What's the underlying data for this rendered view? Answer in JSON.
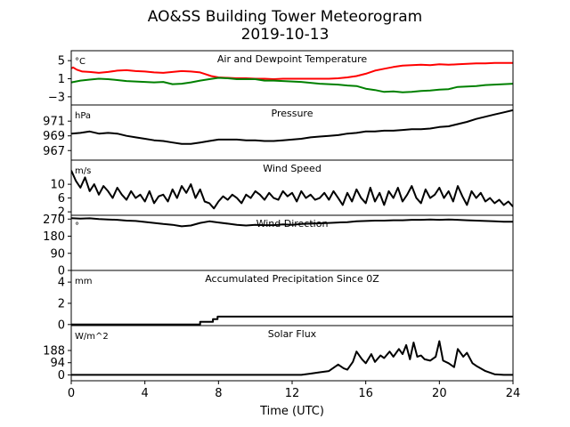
{
  "figure": {
    "title_line1": "AO&SS Building Tower Meteorogram",
    "title_line2": "2019-10-13",
    "xlabel": "Time (UTC)",
    "xticks": [
      0,
      4,
      8,
      12,
      16,
      20,
      24
    ],
    "xlim": [
      0,
      24
    ]
  },
  "chart_data": [
    {
      "type": "line",
      "title": "Air and Dewpoint Temperature",
      "units": "°C",
      "ylim": [
        -4.8,
        7.2
      ],
      "yticks": [
        -3,
        1,
        5
      ],
      "grid": false,
      "series": [
        {
          "color": "#ff0000",
          "x": [
            0,
            0.1,
            0.3,
            0.6,
            1,
            1.5,
            2,
            2.5,
            3,
            3.5,
            4,
            4.5,
            5,
            5.5,
            6,
            6.5,
            7,
            7.3,
            7.6,
            8,
            8.5,
            9,
            9.5,
            10,
            10.5,
            11,
            11.5,
            12,
            12.5,
            13,
            13.5,
            14,
            14.5,
            15,
            15.5,
            16,
            16.5,
            17,
            17.5,
            18,
            18.5,
            19,
            19.5,
            20,
            20.5,
            21,
            21.5,
            22,
            22.5,
            23,
            23.5,
            24
          ],
          "values": [
            3.3,
            3.5,
            3.0,
            2.6,
            2.5,
            2.3,
            2.5,
            2.8,
            2.9,
            2.7,
            2.6,
            2.4,
            2.3,
            2.5,
            2.7,
            2.6,
            2.4,
            2.0,
            1.6,
            1.3,
            1.2,
            1.1,
            1.1,
            1.0,
            1.0,
            0.9,
            1.0,
            1.0,
            1.0,
            1.0,
            1.0,
            1.0,
            1.1,
            1.3,
            1.6,
            2.1,
            2.8,
            3.2,
            3.6,
            3.9,
            4.0,
            4.1,
            4.0,
            4.2,
            4.1,
            4.2,
            4.3,
            4.4,
            4.4,
            4.5,
            4.5,
            4.5
          ]
        },
        {
          "color": "#008000",
          "x": [
            0,
            0.5,
            1,
            1.5,
            2,
            2.5,
            3,
            3.5,
            4,
            4.5,
            5,
            5.5,
            6,
            6.5,
            7,
            7.5,
            8,
            8.5,
            9,
            9.5,
            10,
            10.5,
            11,
            11.5,
            12,
            12.5,
            13,
            13.5,
            14,
            14.5,
            15,
            15.5,
            16,
            16.5,
            17,
            17.5,
            18,
            18.5,
            19,
            19.5,
            20,
            20.5,
            21,
            21.5,
            22,
            22.5,
            23,
            23.5,
            24
          ],
          "values": [
            0.2,
            0.6,
            0.8,
            1.0,
            0.9,
            0.7,
            0.5,
            0.4,
            0.3,
            0.2,
            0.3,
            -0.2,
            -0.1,
            0.2,
            0.6,
            0.9,
            1.2,
            1.1,
            0.9,
            0.9,
            0.9,
            0.6,
            0.6,
            0.5,
            0.4,
            0.3,
            0.1,
            -0.1,
            -0.2,
            -0.3,
            -0.5,
            -0.6,
            -1.2,
            -1.5,
            -1.9,
            -1.8,
            -2.0,
            -1.9,
            -1.7,
            -1.6,
            -1.4,
            -1.3,
            -0.8,
            -0.7,
            -0.6,
            -0.4,
            -0.3,
            -0.2,
            -0.1
          ]
        }
      ]
    },
    {
      "type": "line",
      "title": "Pressure",
      "units": "hPa",
      "ylim": [
        965.7,
        973.2
      ],
      "yticks": [
        967,
        969,
        971
      ],
      "grid": false,
      "series": [
        {
          "color": "#000000",
          "x": [
            0,
            0.5,
            1,
            1.5,
            2,
            2.5,
            3,
            3.5,
            4,
            4.5,
            5,
            5.5,
            6,
            6.5,
            7,
            7.5,
            8,
            8.5,
            9,
            9.5,
            10,
            10.5,
            11,
            11.5,
            12,
            12.5,
            13,
            13.5,
            14,
            14.5,
            15,
            15.5,
            16,
            16.5,
            17,
            17.5,
            18,
            18.5,
            19,
            19.5,
            20,
            20.5,
            21,
            21.5,
            22,
            22.5,
            23,
            23.5,
            24
          ],
          "values": [
            969.3,
            969.4,
            969.6,
            969.3,
            969.4,
            969.3,
            969.0,
            968.8,
            968.6,
            968.4,
            968.3,
            968.1,
            967.9,
            967.9,
            968.1,
            968.3,
            968.5,
            968.5,
            968.5,
            968.4,
            968.4,
            968.3,
            968.3,
            968.4,
            968.5,
            968.6,
            968.8,
            968.9,
            969.0,
            969.1,
            969.3,
            969.4,
            969.6,
            969.6,
            969.7,
            969.7,
            969.8,
            969.9,
            969.9,
            970.0,
            970.2,
            970.3,
            970.6,
            970.9,
            971.3,
            971.6,
            971.9,
            972.2,
            972.5
          ]
        }
      ]
    },
    {
      "type": "line",
      "title": "Wind Speed",
      "units": "m/s",
      "ylim": [
        1.0,
        17.0
      ],
      "yticks": [
        2,
        6,
        10
      ],
      "grid": false,
      "series": [
        {
          "color": "#000000",
          "x": [
            0,
            0.25,
            0.5,
            0.75,
            1,
            1.25,
            1.5,
            1.75,
            2,
            2.25,
            2.5,
            2.75,
            3,
            3.25,
            3.5,
            3.75,
            4,
            4.25,
            4.5,
            4.75,
            5,
            5.25,
            5.5,
            5.75,
            6,
            6.25,
            6.5,
            6.75,
            7,
            7.25,
            7.5,
            7.75,
            8,
            8.25,
            8.5,
            8.75,
            9,
            9.25,
            9.5,
            9.75,
            10,
            10.25,
            10.5,
            10.75,
            11,
            11.25,
            11.5,
            11.75,
            12,
            12.25,
            12.5,
            12.75,
            13,
            13.25,
            13.5,
            13.75,
            14,
            14.25,
            14.5,
            14.75,
            15,
            15.25,
            15.5,
            15.75,
            16,
            16.25,
            16.5,
            16.75,
            17,
            17.25,
            17.5,
            17.75,
            18,
            18.25,
            18.5,
            18.75,
            19,
            19.25,
            19.5,
            19.75,
            20,
            20.25,
            20.5,
            20.75,
            21,
            21.25,
            21.5,
            21.75,
            22,
            22.25,
            22.5,
            22.75,
            23,
            23.25,
            23.5,
            23.75,
            24
          ],
          "values": [
            14.0,
            11.0,
            9.0,
            12.0,
            8.0,
            10.0,
            7.0,
            9.5,
            8.0,
            6.0,
            9.0,
            7.0,
            5.5,
            8.0,
            6.0,
            7.0,
            5.0,
            8.0,
            4.5,
            6.5,
            7.0,
            5.0,
            8.5,
            6.0,
            9.5,
            7.5,
            10.0,
            6.0,
            8.5,
            5.0,
            4.5,
            3.0,
            5.0,
            6.5,
            5.5,
            7.0,
            6.0,
            4.5,
            7.0,
            6.0,
            8.0,
            7.0,
            5.5,
            7.5,
            6.0,
            5.5,
            8.0,
            6.5,
            7.5,
            5.0,
            8.0,
            6.0,
            7.0,
            5.5,
            6.0,
            7.5,
            5.5,
            8.0,
            6.0,
            4.0,
            7.5,
            5.0,
            8.5,
            6.0,
            4.5,
            9.0,
            5.0,
            7.5,
            4.0,
            8.0,
            6.0,
            9.0,
            5.0,
            7.0,
            9.5,
            6.0,
            4.5,
            8.5,
            6.0,
            7.0,
            9.0,
            6.0,
            8.0,
            5.0,
            9.5,
            6.5,
            4.0,
            8.0,
            6.0,
            7.5,
            5.0,
            6.0,
            4.5,
            5.5,
            4.0,
            5.0,
            3.5
          ]
        }
      ]
    },
    {
      "type": "line",
      "title": "Wind Direction",
      "units": "°",
      "ylim": [
        0,
        290
      ],
      "yticks": [
        0,
        90,
        180,
        270
      ],
      "grid": false,
      "series": [
        {
          "color": "#000000",
          "x": [
            0,
            0.5,
            1,
            1.5,
            2,
            2.5,
            3,
            3.5,
            4,
            4.5,
            5,
            5.5,
            6,
            6.5,
            7,
            7.5,
            8,
            8.5,
            9,
            9.5,
            10,
            10.5,
            11,
            11.5,
            12,
            12.5,
            13,
            13.5,
            14,
            14.5,
            15,
            15.5,
            16,
            16.5,
            17,
            17.5,
            18,
            18.5,
            19,
            19.5,
            20,
            20.5,
            21,
            21.5,
            22,
            22.5,
            23,
            23.5,
            24
          ],
          "values": [
            275,
            272,
            274,
            270,
            268,
            266,
            262,
            260,
            255,
            250,
            244,
            240,
            232,
            236,
            250,
            258,
            252,
            246,
            240,
            236,
            240,
            238,
            238,
            242,
            240,
            244,
            246,
            248,
            250,
            252,
            254,
            258,
            260,
            262,
            262,
            264,
            264,
            266,
            266,
            268,
            266,
            268,
            266,
            264,
            262,
            260,
            258,
            256,
            256
          ]
        }
      ]
    },
    {
      "type": "line",
      "title": "Accumulated Precipitation Since 0Z",
      "units": "mm",
      "ylim": [
        -0.1,
        5.1
      ],
      "yticks": [
        0,
        2,
        4
      ],
      "grid": false,
      "series": [
        {
          "color": "#000000",
          "x": [
            0,
            7.0,
            7.0,
            7.7,
            7.7,
            7.95,
            7.95,
            24
          ],
          "values": [
            0,
            0,
            0.25,
            0.25,
            0.5,
            0.5,
            0.75,
            0.75
          ]
        }
      ]
    },
    {
      "type": "line",
      "title": "Solar Flux",
      "units": "W/m^2",
      "ylim": [
        -45,
        380
      ],
      "yticks": [
        0,
        94,
        188
      ],
      "grid": false,
      "series": [
        {
          "color": "#000000",
          "x": [
            0,
            12.5,
            13.0,
            13.5,
            14.0,
            14.5,
            14.8,
            15.0,
            15.3,
            15.5,
            15.8,
            16.0,
            16.3,
            16.5,
            16.8,
            17.0,
            17.3,
            17.5,
            17.8,
            18.0,
            18.2,
            18.4,
            18.6,
            18.8,
            19.0,
            19.2,
            19.5,
            19.8,
            20.0,
            20.2,
            20.5,
            20.8,
            21.0,
            21.3,
            21.5,
            21.8,
            22.0,
            22.5,
            23.0,
            23.5,
            24
          ],
          "values": [
            0,
            0,
            10,
            20,
            30,
            80,
            50,
            40,
            100,
            180,
            120,
            90,
            160,
            100,
            150,
            130,
            180,
            140,
            200,
            160,
            230,
            120,
            250,
            140,
            150,
            120,
            110,
            140,
            260,
            110,
            90,
            60,
            200,
            140,
            170,
            90,
            70,
            30,
            5,
            0,
            0
          ]
        }
      ]
    }
  ]
}
